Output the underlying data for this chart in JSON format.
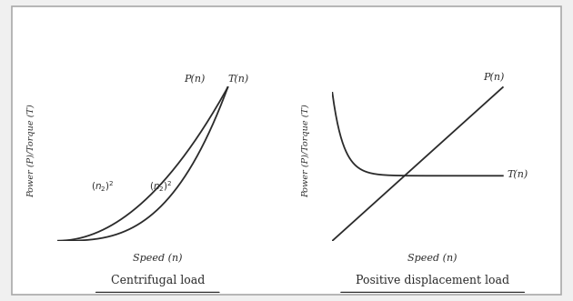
{
  "bg_color": "#f0f0f0",
  "panel_color": "#ffffff",
  "line_color": "#2b2b2b",
  "left_title": "Centrifugal load",
  "right_title": "Positive displacement load",
  "ylabel": "Power (P)/Torque (T)",
  "xlabel": "Speed (n)",
  "centrifugal": {
    "P_label": "P(n)",
    "T_label": "T(n)"
  },
  "posdispl": {
    "P_label": "P(n)",
    "T_label": "T(n)"
  }
}
